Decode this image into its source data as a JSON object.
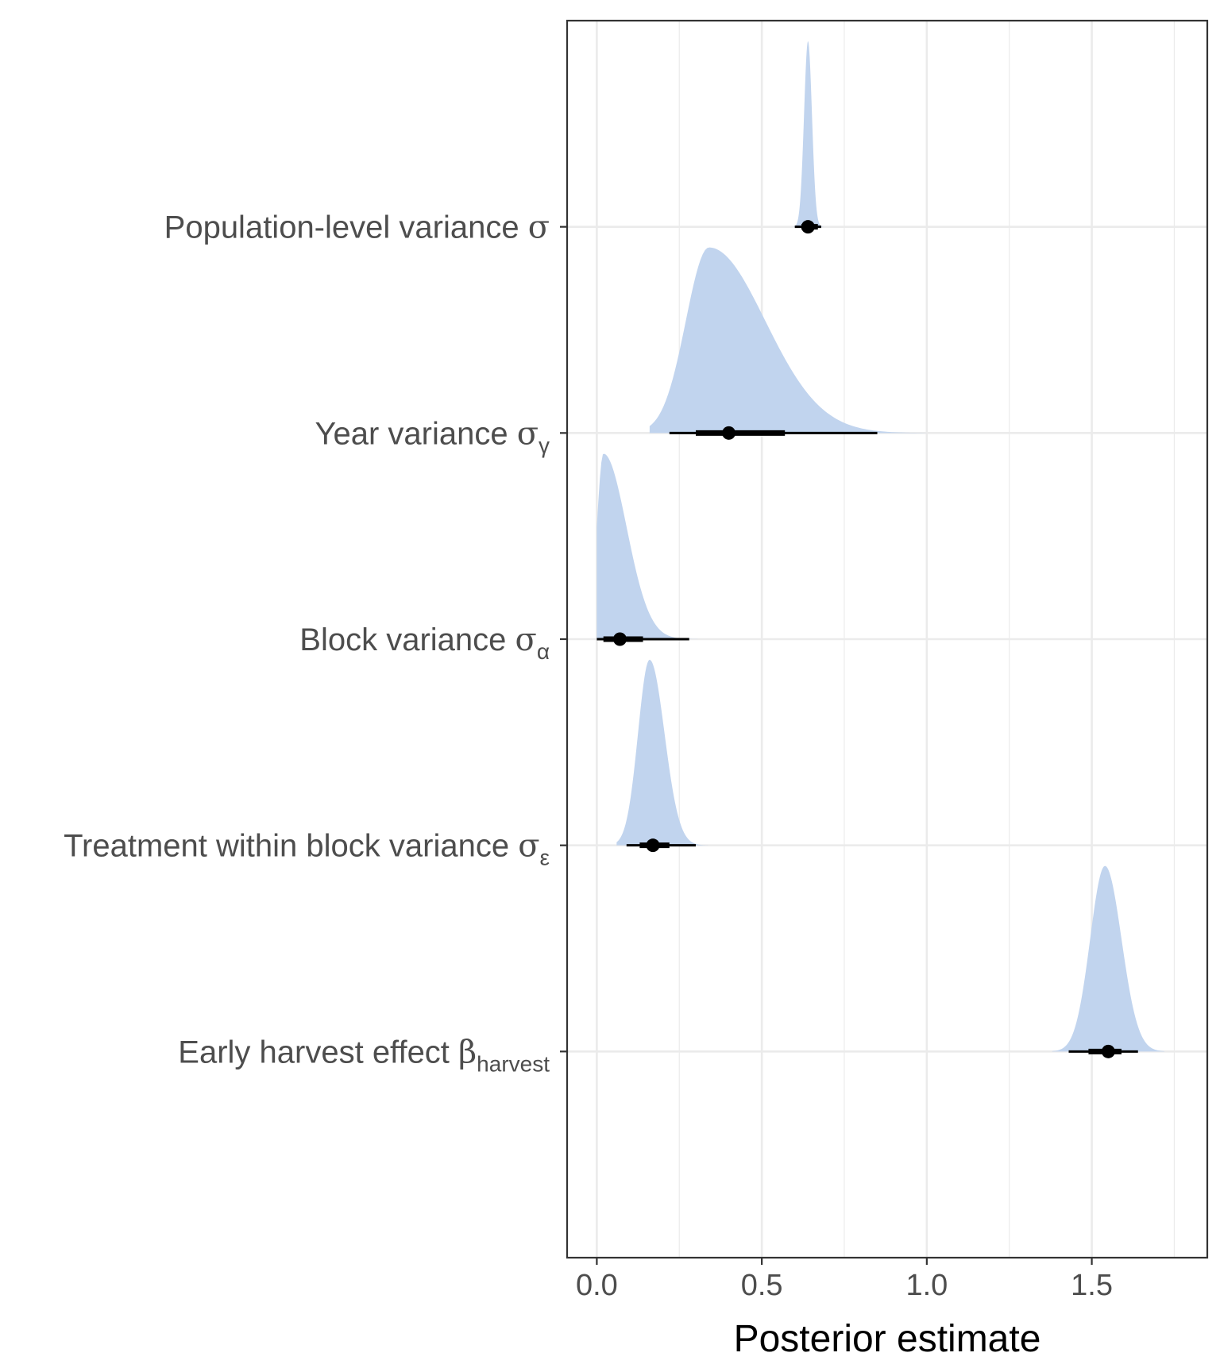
{
  "chart_data": {
    "type": "halfeye",
    "title": "",
    "xlabel": "Posterior estimate",
    "ylabel": "",
    "xlim": [
      -0.09,
      1.85
    ],
    "x_ticks": [
      0.0,
      0.5,
      1.0,
      1.5
    ],
    "x_tick_labels": [
      "0.0",
      "0.5",
      "1.0",
      "1.5"
    ],
    "grid": true,
    "colors": {
      "density": "#c1d4ee",
      "interval": "#000000",
      "grid": "#ebebeb",
      "border": "#333333"
    },
    "categories": [
      {
        "label": "Population-level variance",
        "symbol": "σ",
        "subscript": "",
        "median": 0.64,
        "inner": [
          0.62,
          0.67
        ],
        "outer": [
          0.6,
          0.68
        ],
        "density_range": [
          0.59,
          0.71
        ],
        "density_mode": 0.64,
        "sd_left": 0.012,
        "sd_right": 0.012
      },
      {
        "label": "Year variance",
        "symbol": "σ",
        "subscript": "γ",
        "median": 0.4,
        "inner": [
          0.3,
          0.57
        ],
        "outer": [
          0.22,
          0.85
        ],
        "density_range": [
          0.16,
          1.0
        ],
        "density_mode": 0.34,
        "sd_left": 0.07,
        "sd_right": 0.17
      },
      {
        "label": "Block variance",
        "symbol": "σ",
        "subscript": "α",
        "median": 0.07,
        "inner": [
          0.02,
          0.14
        ],
        "outer": [
          0.0,
          0.28
        ],
        "density_range": [
          0.0,
          0.55
        ],
        "density_mode": 0.02,
        "sd_left": 0.02,
        "sd_right": 0.07
      },
      {
        "label": "Treatment within block variance",
        "symbol": "σ",
        "subscript": "ε",
        "median": 0.17,
        "inner": [
          0.13,
          0.22
        ],
        "outer": [
          0.09,
          0.3
        ],
        "density_range": [
          0.06,
          0.42
        ],
        "density_mode": 0.16,
        "sd_left": 0.035,
        "sd_right": 0.045
      },
      {
        "label": "Early harvest effect",
        "symbol": "β",
        "subscript": "harvest",
        "median": 1.55,
        "inner": [
          1.49,
          1.59
        ],
        "outer": [
          1.43,
          1.64
        ],
        "density_range": [
          1.38,
          1.72
        ],
        "density_mode": 1.54,
        "sd_left": 0.045,
        "sd_right": 0.05
      }
    ]
  }
}
